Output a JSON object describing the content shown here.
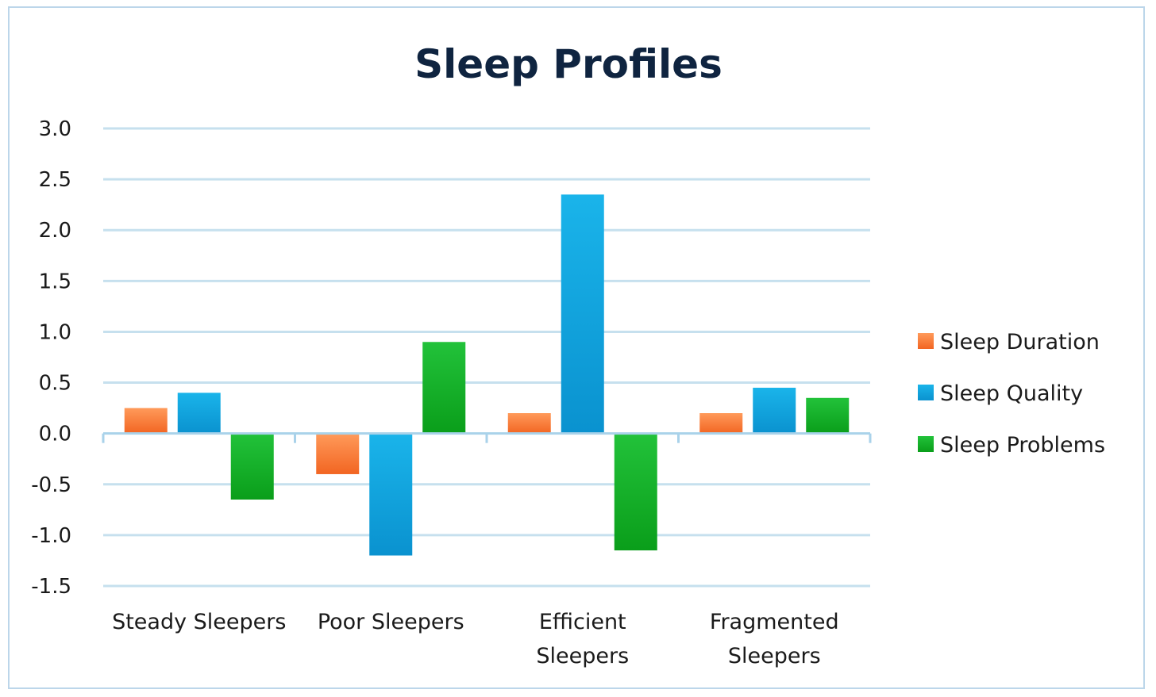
{
  "chart_data": {
    "type": "bar",
    "title": "Sleep Profiles",
    "xlabel": "",
    "ylabel": "",
    "ylim": [
      -1.5,
      3.0
    ],
    "yticks": [
      3.0,
      2.5,
      2.0,
      1.5,
      1.0,
      0.5,
      0.0,
      -0.5,
      -1.0,
      -1.5
    ],
    "ytick_labels": [
      "3.0",
      "2.5",
      "2.0",
      "1.5",
      "1.0",
      "0.5",
      "0.0",
      "-0.5",
      "-1.0",
      "-1.5"
    ],
    "grid": true,
    "legend_position": "right",
    "categories": [
      [
        "Steady Sleepers"
      ],
      [
        "Poor Sleepers"
      ],
      [
        "Efficient",
        "Sleepers"
      ],
      [
        "Fragmented",
        "Sleepers"
      ]
    ],
    "series": [
      {
        "name": "Sleep Duration",
        "color": "#f26522",
        "color_light": "#ff9a5a",
        "values": [
          0.25,
          -0.4,
          0.2,
          0.2
        ]
      },
      {
        "name": "Sleep Quality",
        "color": "#0a92cf",
        "color_light": "#1ab4ea",
        "values": [
          0.4,
          -1.2,
          2.35,
          0.45
        ]
      },
      {
        "name": "Sleep Problems",
        "color": "#0a9e1a",
        "color_light": "#22c23a",
        "values": [
          -0.65,
          0.9,
          -1.15,
          0.35
        ]
      }
    ],
    "colors": {
      "grid": "#c6e0ee",
      "axis": "#a9d2ea",
      "title": "#0f2440",
      "frame": "#bcd6ea"
    }
  }
}
